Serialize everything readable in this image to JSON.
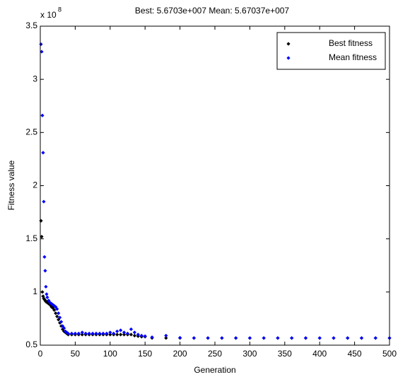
{
  "chart_data": {
    "type": "scatter",
    "title": "Best: 5.6703e+007 Mean: 5.67037e+007",
    "xlabel": "Generation",
    "ylabel": "Fitness value",
    "y_multiplier": {
      "base": "x 10",
      "exponent": "8"
    },
    "xlim": [
      0,
      500
    ],
    "ylim": [
      0.5,
      3.5
    ],
    "xticks": [
      0,
      50,
      100,
      150,
      200,
      250,
      300,
      350,
      400,
      450,
      500
    ],
    "yticks": [
      0.5,
      1,
      1.5,
      2,
      2.5,
      3,
      3.5
    ],
    "legend": "northeast",
    "x": [
      1,
      2,
      3,
      4,
      5,
      6,
      7,
      8,
      9,
      10,
      12,
      14,
      16,
      18,
      20,
      22,
      24,
      26,
      28,
      30,
      32,
      34,
      36,
      38,
      40,
      45,
      50,
      55,
      60,
      65,
      70,
      75,
      80,
      85,
      90,
      95,
      100,
      105,
      110,
      115,
      120,
      125,
      130,
      135,
      140,
      145,
      150,
      160,
      180,
      200,
      220,
      240,
      260,
      280,
      300,
      320,
      340,
      360,
      380,
      400,
      420,
      440,
      460,
      480,
      500
    ],
    "series": [
      {
        "name": "Best fitness",
        "color": "#000000",
        "values": [
          1.67,
          1.52,
          1.0,
          0.96,
          0.94,
          0.93,
          0.92,
          0.91,
          0.91,
          0.9,
          0.89,
          0.88,
          0.86,
          0.85,
          0.83,
          0.8,
          0.77,
          0.74,
          0.71,
          0.68,
          0.65,
          0.63,
          0.62,
          0.61,
          0.6,
          0.6,
          0.6,
          0.6,
          0.6,
          0.6,
          0.6,
          0.6,
          0.6,
          0.6,
          0.6,
          0.6,
          0.6,
          0.6,
          0.6,
          0.6,
          0.6,
          0.6,
          0.6,
          0.59,
          0.585,
          0.58,
          0.58,
          0.567,
          0.567,
          0.567,
          0.567,
          0.567,
          0.567,
          0.567,
          0.567,
          0.567,
          0.567,
          0.567,
          0.567,
          0.567,
          0.567,
          0.567,
          0.567,
          0.567,
          0.567
        ]
      },
      {
        "name": "Mean fitness",
        "color": "#0000ff",
        "values": [
          3.33,
          3.26,
          2.66,
          2.31,
          1.85,
          1.33,
          1.2,
          1.05,
          0.98,
          0.95,
          0.92,
          0.9,
          0.89,
          0.88,
          0.87,
          0.86,
          0.84,
          0.8,
          0.76,
          0.72,
          0.68,
          0.66,
          0.63,
          0.62,
          0.61,
          0.61,
          0.61,
          0.61,
          0.62,
          0.61,
          0.61,
          0.61,
          0.61,
          0.61,
          0.61,
          0.61,
          0.62,
          0.61,
          0.63,
          0.64,
          0.62,
          0.61,
          0.65,
          0.62,
          0.6,
          0.59,
          0.585,
          0.575,
          0.59,
          0.57,
          0.567,
          0.567,
          0.567,
          0.567,
          0.567,
          0.567,
          0.567,
          0.567,
          0.567,
          0.567,
          0.567,
          0.567,
          0.567,
          0.567,
          0.567
        ]
      }
    ]
  }
}
